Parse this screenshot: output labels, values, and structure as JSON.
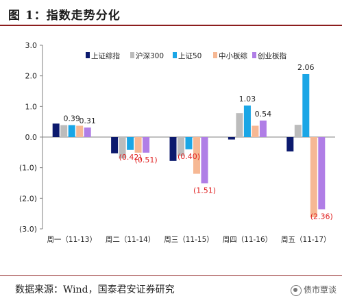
{
  "header": {
    "title": "图 1：指数走势分化"
  },
  "footer": {
    "source": "数据来源：Wind，国泰君安证券研究",
    "watermark": "债市覃谈"
  },
  "colors": {
    "title_rule": "#8c1d1d",
    "negative_label": "#e02020",
    "series": [
      "#0c1a6e",
      "#bcbcbc",
      "#1aa6e6",
      "#f6b894",
      "#b07ee6"
    ]
  },
  "chart_data": {
    "type": "bar",
    "categories": [
      "周一（11-13）",
      "周二（11-14）",
      "周三（11-15）",
      "周四（11-16）",
      "周五（11-17）"
    ],
    "series": [
      {
        "name": "上证综指",
        "values": [
          0.44,
          -0.53,
          -0.78,
          -0.08,
          -0.47
        ]
      },
      {
        "name": "沪深300",
        "values": [
          0.39,
          -0.7,
          -0.62,
          0.78,
          0.4
        ]
      },
      {
        "name": "上证50",
        "values": [
          0.39,
          -0.42,
          -0.4,
          1.03,
          2.06
        ]
      },
      {
        "name": "中小板综",
        "values": [
          0.37,
          -0.51,
          -1.2,
          0.37,
          -2.62
        ]
      },
      {
        "name": "创业板指",
        "values": [
          0.31,
          -0.51,
          -1.51,
          0.54,
          -2.36
        ]
      }
    ],
    "data_labels": [
      {
        "category": 0,
        "series": 2,
        "text": "0.39",
        "negative": false
      },
      {
        "category": 0,
        "series": 4,
        "text": "0.31",
        "negative": false
      },
      {
        "category": 1,
        "series": 2,
        "text": "(0.42)",
        "negative": true
      },
      {
        "category": 1,
        "series": 4,
        "text": "(0.51)",
        "negative": true
      },
      {
        "category": 2,
        "series": 2,
        "text": "(0.40)",
        "negative": true
      },
      {
        "category": 2,
        "series": 4,
        "text": "(1.51)",
        "negative": true
      },
      {
        "category": 3,
        "series": 2,
        "text": "1.03",
        "negative": false
      },
      {
        "category": 3,
        "series": 4,
        "text": "0.54",
        "negative": false
      },
      {
        "category": 4,
        "series": 2,
        "text": "2.06",
        "negative": false
      },
      {
        "category": 4,
        "series": 4,
        "text": "(2.36)",
        "negative": true
      }
    ],
    "ylim": [
      -3.0,
      3.0
    ],
    "yticks": [
      "3.0",
      "2.0",
      "1.0",
      "0.0",
      "(1.0)",
      "(2.0)",
      "(3.0)"
    ],
    "ytick_values": [
      3,
      2,
      1,
      0,
      -1,
      -2,
      -3
    ],
    "grid": false,
    "legend_position": "top-center"
  }
}
